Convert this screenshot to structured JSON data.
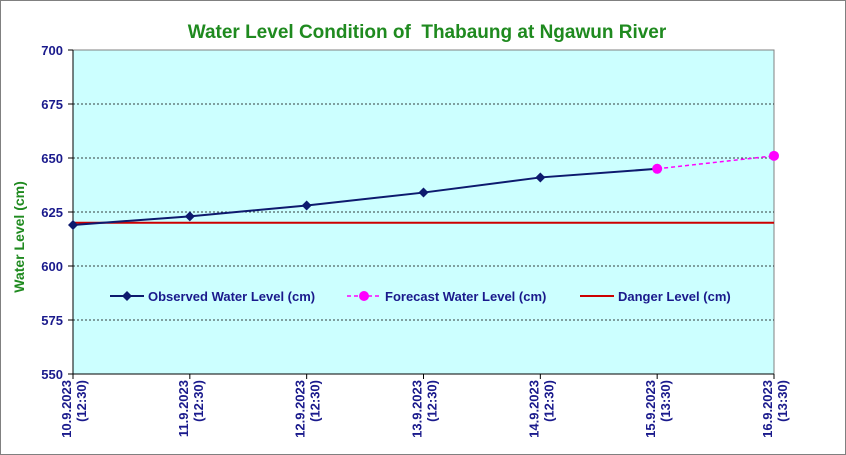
{
  "colors": {
    "plot_bg": "#ccffff",
    "observed": "#0d1a6e",
    "forecast": "#ff00ff",
    "danger": "#cc0000",
    "title": "#1f8a1f",
    "axis_text": "#1a1a8c"
  },
  "chart_data": {
    "type": "line",
    "title": "Water Level Condition of  Thabaung at Ngawun River",
    "xlabel": "",
    "ylabel": "Water Level (cm)",
    "ylim": [
      550,
      700
    ],
    "yticks": [
      550,
      575,
      600,
      625,
      650,
      675,
      700
    ],
    "grid": "horizontal dashed",
    "legend_position": "center",
    "categories": [
      [
        "10.9.2023",
        "(12:30)"
      ],
      [
        "11.9.2023",
        "(12:30)"
      ],
      [
        "12.9.2023",
        "(12:30)"
      ],
      [
        "13.9.2023",
        "(12:30)"
      ],
      [
        "14.9.2023",
        "(12:30)"
      ],
      [
        "15.9.2023",
        "(13:30)"
      ],
      [
        "16.9.2023",
        "(13:30)"
      ]
    ],
    "series": [
      {
        "name": "Observed Water Level (cm)",
        "style": "solid-diamond",
        "values": [
          619,
          623,
          628,
          634,
          641,
          645,
          null
        ]
      },
      {
        "name": "Forecast Water Level (cm)",
        "style": "dashed-circle",
        "values": [
          null,
          null,
          null,
          null,
          null,
          645,
          651
        ]
      },
      {
        "name": "Danger Level (cm)",
        "style": "solid-line",
        "values": [
          620,
          620,
          620,
          620,
          620,
          620,
          620
        ]
      }
    ]
  }
}
